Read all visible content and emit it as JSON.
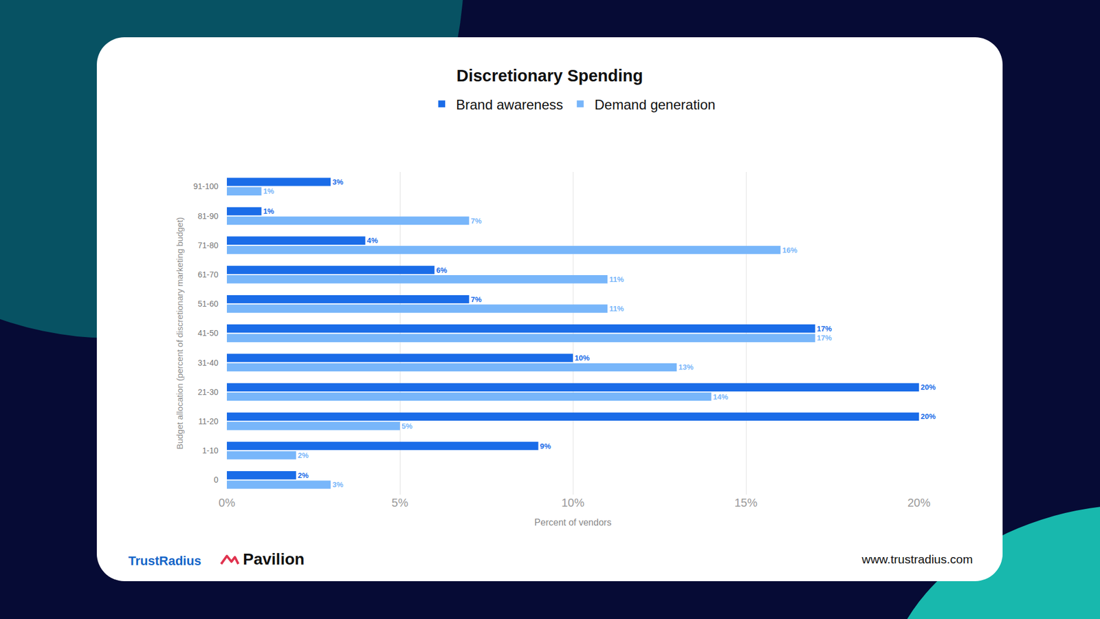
{
  "chart_data": {
    "type": "bar",
    "title": "Discretionary Spending",
    "orientation": "horizontal",
    "categories": [
      "0",
      "1-10",
      "11-20",
      "21-30",
      "31-40",
      "41-50",
      "51-60",
      "61-70",
      "71-80",
      "81-90",
      "91-100"
    ],
    "series": [
      {
        "name": "Brand awareness",
        "color": "#1a6ce8",
        "values": [
          2,
          9,
          20,
          20,
          10,
          17,
          7,
          6,
          4,
          1,
          3
        ],
        "value_labels": [
          "2%",
          "9%",
          "20%",
          "20%",
          "10%",
          "17%",
          "7%",
          "6%",
          "4%",
          "1%",
          "3%"
        ]
      },
      {
        "name": "Demand generation",
        "color": "#78b6fa",
        "values": [
          3,
          2,
          5,
          14,
          13,
          17,
          11,
          11,
          16,
          7,
          1
        ],
        "value_labels": [
          "3%",
          "2%",
          "5%",
          "14%",
          "13%",
          "17%",
          "11%",
          "11%",
          "16%",
          "7%",
          "1%"
        ]
      }
    ],
    "xlabel": "Percent of vendors",
    "ylabel": "Budget allocation (percent of discretionary marketing budget)",
    "xlim": [
      0,
      20
    ],
    "xticks": [
      {
        "value": 0,
        "label": "0%"
      },
      {
        "value": 5,
        "label": "5%"
      },
      {
        "value": 10,
        "label": "10%"
      },
      {
        "value": 15,
        "label": "15%"
      },
      {
        "value": 20,
        "label": "20%"
      }
    ],
    "grid": true,
    "legend": "top",
    "data_labels": true,
    "annotations": [
      "TrustRadius",
      "Pavilion",
      "www.trustradius.com"
    ]
  }
}
